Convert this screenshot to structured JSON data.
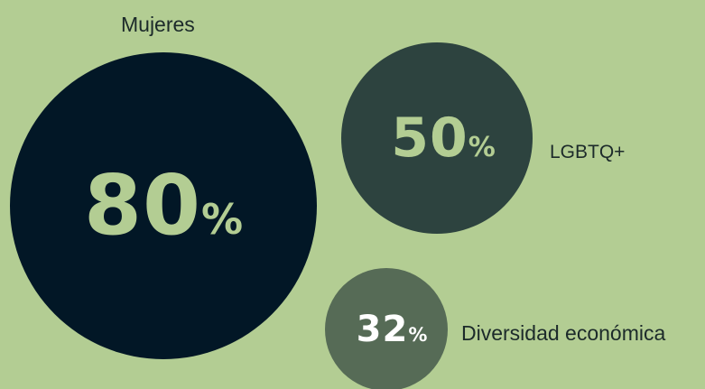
{
  "chart_data": {
    "type": "bubble",
    "unit": "%",
    "items": [
      {
        "label": "Mujeres",
        "value": 80,
        "value_text": "80",
        "unit_text": "%",
        "color": "#021726",
        "text_color": "#b3cd93"
      },
      {
        "label": "LGBTQ+",
        "value": 50,
        "value_text": "50",
        "unit_text": "%",
        "color": "#2d433f",
        "text_color": "#b3cd93"
      },
      {
        "label": "Diversidad económica",
        "value": 32,
        "value_text": "32",
        "unit_text": "%",
        "color": "#566b56",
        "text_color": "#ffffff"
      }
    ]
  },
  "colors": {
    "background": "#b3cd93",
    "label_text": "#1c2a2a"
  }
}
